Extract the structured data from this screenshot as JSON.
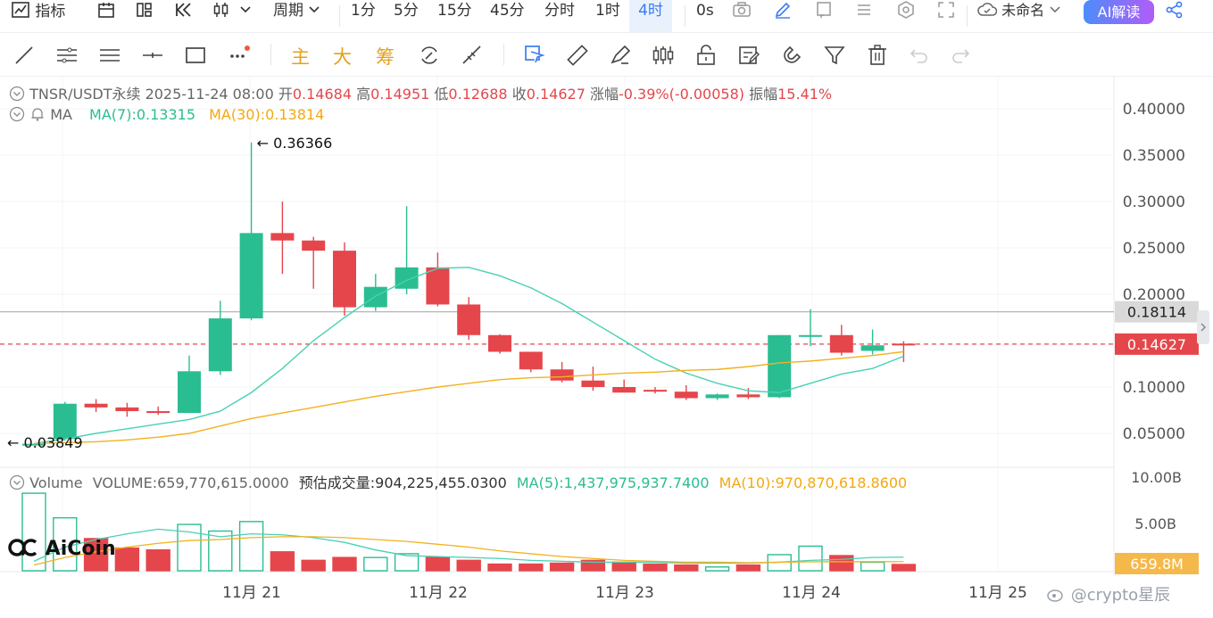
{
  "toolbar": {
    "indicators": "指标",
    "intervals": [
      "1分",
      "5分",
      "15分",
      "45分",
      "分时",
      "1时",
      "4时"
    ],
    "active_interval": "4时",
    "period": "周期",
    "countdown": "0s",
    "layout_name": "未命名",
    "ai_button": "AI解读"
  },
  "drawbar": {
    "main": "主",
    "large": "大",
    "chips": "筹"
  },
  "symbol_info": {
    "pair": "TNSR/USDT永续",
    "datetime": "2025-11-24 08:00",
    "open_label": "开",
    "open": "0.14684",
    "high_label": "高",
    "high": "0.14951",
    "low_label": "低",
    "low": "0.12688",
    "close_label": "收",
    "close": "0.14627",
    "change_label": "涨幅",
    "change": "-0.39%(-0.00058)",
    "amplitude_label": "振幅",
    "amplitude": "15.41%"
  },
  "ma_info": {
    "label": "MA",
    "ma7": "MA(7):0.13315",
    "ma30": "MA(30):0.13814"
  },
  "volume_info": {
    "label": "Volume",
    "volume": "VOLUME:659,770,615.0000",
    "estimate": "预估成交量:904,225,455.0300",
    "ma5": "MA(5):1,437,975,937.7400",
    "ma10": "MA(10):970,870,618.8600"
  },
  "price_axis": [
    "0.40000",
    "0.35000",
    "0.30000",
    "0.25000",
    "0.20000",
    "0.10000",
    "0.05000"
  ],
  "price_tags": {
    "ref": "0.18114",
    "last": "0.14627"
  },
  "volume_axis": [
    "10.00B",
    "5.00B"
  ],
  "volume_tag": "659.8M",
  "time_axis": [
    "11月 21",
    "11月 22",
    "11月 23",
    "11月 24",
    "11月 25"
  ],
  "annotations": {
    "high": "0.36366",
    "low": "0.03849"
  },
  "logo": "AiCoin",
  "watermark": "@crypto星辰",
  "colors": {
    "up": "#2bbd92",
    "down": "#e5464b",
    "ma_fast": "#48d1b4",
    "ma_slow": "#f2b21e",
    "accent": "#3a7bf0"
  },
  "chart_data": {
    "type": "candlestick",
    "candles": [
      {
        "o": 0.0385,
        "h": 0.039,
        "l": 0.0385,
        "c": 0.0388
      },
      {
        "o": 0.044,
        "h": 0.084,
        "l": 0.042,
        "c": 0.082
      },
      {
        "o": 0.082,
        "h": 0.087,
        "l": 0.073,
        "c": 0.078
      },
      {
        "o": 0.078,
        "h": 0.083,
        "l": 0.068,
        "c": 0.074
      },
      {
        "o": 0.074,
        "h": 0.079,
        "l": 0.07,
        "c": 0.072
      },
      {
        "o": 0.072,
        "h": 0.134,
        "l": 0.072,
        "c": 0.117
      },
      {
        "o": 0.117,
        "h": 0.193,
        "l": 0.113,
        "c": 0.174
      },
      {
        "o": 0.174,
        "h": 0.3637,
        "l": 0.172,
        "c": 0.266
      },
      {
        "o": 0.266,
        "h": 0.3,
        "l": 0.222,
        "c": 0.258
      },
      {
        "o": 0.258,
        "h": 0.262,
        "l": 0.206,
        "c": 0.247
      },
      {
        "o": 0.247,
        "h": 0.256,
        "l": 0.177,
        "c": 0.186
      },
      {
        "o": 0.186,
        "h": 0.222,
        "l": 0.182,
        "c": 0.208
      },
      {
        "o": 0.206,
        "h": 0.295,
        "l": 0.2,
        "c": 0.229
      },
      {
        "o": 0.229,
        "h": 0.245,
        "l": 0.187,
        "c": 0.189
      },
      {
        "o": 0.189,
        "h": 0.197,
        "l": 0.151,
        "c": 0.156
      },
      {
        "o": 0.156,
        "h": 0.157,
        "l": 0.136,
        "c": 0.138
      },
      {
        "o": 0.138,
        "h": 0.138,
        "l": 0.116,
        "c": 0.119
      },
      {
        "o": 0.119,
        "h": 0.127,
        "l": 0.105,
        "c": 0.107
      },
      {
        "o": 0.107,
        "h": 0.122,
        "l": 0.096,
        "c": 0.1
      },
      {
        "o": 0.1,
        "h": 0.108,
        "l": 0.094,
        "c": 0.094
      },
      {
        "o": 0.097,
        "h": 0.1,
        "l": 0.093,
        "c": 0.095
      },
      {
        "o": 0.095,
        "h": 0.102,
        "l": 0.086,
        "c": 0.088
      },
      {
        "o": 0.088,
        "h": 0.093,
        "l": 0.086,
        "c": 0.092
      },
      {
        "o": 0.092,
        "h": 0.099,
        "l": 0.087,
        "c": 0.089
      },
      {
        "o": 0.089,
        "h": 0.156,
        "l": 0.088,
        "c": 0.156
      },
      {
        "o": 0.156,
        "h": 0.184,
        "l": 0.144,
        "c": 0.156
      },
      {
        "o": 0.156,
        "h": 0.167,
        "l": 0.134,
        "c": 0.137
      },
      {
        "o": 0.139,
        "h": 0.162,
        "l": 0.135,
        "c": 0.145
      },
      {
        "o": 0.1468,
        "h": 0.1495,
        "l": 0.1269,
        "c": 0.1463
      }
    ],
    "volumes": [
      8.2,
      5.6,
      3.4,
      2.4,
      2.2,
      4.9,
      4.2,
      5.2,
      2.0,
      1.1,
      1.4,
      1.4,
      1.8,
      1.4,
      1.1,
      0.7,
      0.7,
      0.8,
      1.1,
      0.9,
      0.7,
      0.6,
      0.4,
      0.6,
      1.7,
      2.6,
      1.6,
      0.9,
      0.66
    ],
    "volume_unit": "B",
    "ma7": [
      0.039,
      0.044,
      0.05,
      0.055,
      0.06,
      0.065,
      0.074,
      0.094,
      0.12,
      0.15,
      0.175,
      0.198,
      0.215,
      0.228,
      0.229,
      0.22,
      0.207,
      0.19,
      0.17,
      0.15,
      0.13,
      0.115,
      0.104,
      0.096,
      0.094,
      0.104,
      0.114,
      0.12,
      0.1332
    ],
    "ma30": [
      0.039,
      0.04,
      0.041,
      0.043,
      0.046,
      0.05,
      0.058,
      0.066,
      0.072,
      0.078,
      0.084,
      0.09,
      0.095,
      0.1,
      0.104,
      0.108,
      0.11,
      0.111,
      0.113,
      0.115,
      0.116,
      0.118,
      0.119,
      0.122,
      0.126,
      0.128,
      0.131,
      0.134,
      0.1381
    ],
    "vol_ma5": [
      1.0,
      2.5,
      3.3,
      3.9,
      4.4,
      4.1,
      3.6,
      3.9,
      3.8,
      3.5,
      3.0,
      2.2,
      1.6,
      1.5,
      1.4,
      1.3,
      1.1,
      1.0,
      0.9,
      0.9,
      0.9,
      0.8,
      0.8,
      0.8,
      0.9,
      1.1,
      1.2,
      1.4,
      1.44
    ],
    "vol_ma10": [
      0.6,
      1.4,
      2.0,
      2.5,
      2.9,
      3.2,
      3.3,
      3.5,
      3.6,
      3.6,
      3.5,
      3.3,
      3.1,
      2.8,
      2.5,
      2.1,
      1.8,
      1.5,
      1.3,
      1.1,
      1.0,
      0.9,
      0.9,
      0.85,
      0.9,
      0.95,
      0.95,
      0.96,
      0.97
    ],
    "ylim": [
      0.03849,
      0.4
    ],
    "ref_price": 0.18114,
    "last_price": 0.14627
  }
}
